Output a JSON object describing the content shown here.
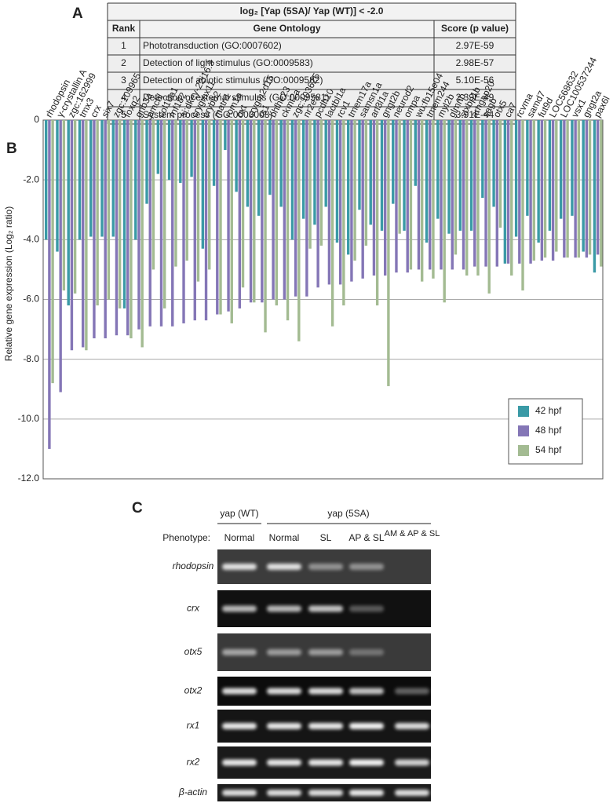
{
  "panel_a": {
    "label": "A",
    "title": "log₂ [Yap (5SA)/ Yap (WT)] < -2.0",
    "columns": [
      "Rank",
      "Gene Ontology",
      "Score (p value)"
    ],
    "rows": [
      [
        "1",
        "Phototransduction (GO:0007602)",
        "2.97E-59"
      ],
      [
        "2",
        "Detection of light stimulus (GO:0009583)",
        "2.98E-57"
      ],
      [
        "3",
        "Detection of abiotic stimulus (GO:0009582)",
        "5.10E-56"
      ],
      [
        "4",
        "Detection of external stimulus (GO:0009581)",
        "2.39E-49"
      ],
      [
        "5",
        "System process (GO:0003008)",
        "3.91E-44"
      ]
    ]
  },
  "chart_data": {
    "type": "bar",
    "panel": "B",
    "y_label": "Relative gene expression (Log₂ ratio)",
    "categories": [
      "rhodopsin",
      "γ-crystallin A",
      "zgc:162999",
      "tmx3",
      "crx",
      "six7",
      "zgc:109965",
      "foxq2",
      "gnb3a",
      "pmchl",
      "col10a1",
      "rnf182",
      "si:dkey-22i16.3",
      "crygmx11",
      "crybb2",
      "matn1",
      "rom1a",
      "oxt",
      "crygm2d15",
      "rs1",
      "bhlhe23",
      "ckmt2a",
      "zgc:103625",
      "nr2e3",
      "pcdh10",
      "lactbl1a",
      "rcv1",
      "tmem17a",
      "samsn1a",
      "arl3l1a",
      "gngt2b",
      "neurod2",
      "ompa",
      "wu:fb15e04",
      "tmem244",
      "myl2b",
      "glmnb",
      "stxbp1b",
      "arhgap20",
      "sagb",
      "otx5",
      "ca7",
      "rcvma",
      "samd7",
      "fut9d",
      "LOC568632",
      "LOC100537244",
      "vsx1",
      "gngt2a",
      "pax6l"
    ],
    "category_colors": [
      "#d62020",
      "#222",
      "#222",
      "#222",
      "#d62020",
      "#222",
      "#222",
      "#222",
      "#222",
      "#222",
      "#222",
      "#222",
      "#222",
      "#222",
      "#222",
      "#222",
      "#222",
      "#222",
      "#222",
      "#222",
      "#222",
      "#222",
      "#222",
      "#d62020",
      "#222",
      "#222",
      "#222",
      "#222",
      "#222",
      "#222",
      "#222",
      "#222",
      "#222",
      "#222",
      "#222",
      "#222",
      "#222",
      "#222",
      "#222",
      "#222",
      "#d62020",
      "#222",
      "#222",
      "#222",
      "#222",
      "#222",
      "#222",
      "#222",
      "#222",
      "#222"
    ],
    "series": [
      {
        "name": "42 hpf",
        "color": "#3a9aa6",
        "values": [
          -4.0,
          -4.4,
          -6.2,
          -4.0,
          -3.9,
          -3.9,
          -3.9,
          -6.3,
          -4.0,
          -2.8,
          -1.8,
          -2.0,
          -2.1,
          -1.9,
          -4.3,
          -2.2,
          -1.0,
          -2.4,
          -2.9,
          -3.2,
          -2.5,
          -2.9,
          -4.0,
          -3.3,
          -3.5,
          -2.9,
          -4.1,
          -4.5,
          -3.0,
          -3.5,
          -3.7,
          -2.8,
          -3.7,
          -2.2,
          -4.1,
          -3.3,
          -3.8,
          -3.7,
          -3.7,
          -2.6,
          -2.9,
          -4.8,
          -3.9,
          -3.2,
          -4.1,
          -3.7,
          -3.3,
          -3.2,
          -4.4,
          -5.1
        ]
      },
      {
        "name": "48 hpf",
        "color": "#8476b6",
        "values": [
          -11.0,
          -9.1,
          -7.7,
          -7.6,
          -7.3,
          -7.3,
          -7.2,
          -7.2,
          -7.0,
          -6.9,
          -6.9,
          -6.9,
          -6.8,
          -6.7,
          -6.7,
          -6.5,
          -6.4,
          -6.3,
          -6.1,
          -6.1,
          -6.0,
          -6.0,
          -5.9,
          -5.9,
          -5.6,
          -5.5,
          -5.5,
          -5.4,
          -5.3,
          -5.2,
          -5.2,
          -5.1,
          -5.1,
          -5.0,
          -5.0,
          -5.0,
          -5.0,
          -5.0,
          -4.9,
          -4.9,
          -4.9,
          -4.8,
          -4.8,
          -4.8,
          -4.7,
          -4.7,
          -4.6,
          -4.6,
          -4.6,
          -4.5
        ]
      },
      {
        "name": "54 hpf",
        "color": "#a3bb92",
        "values": [
          -8.8,
          -5.7,
          -5.8,
          -7.7,
          -6.2,
          -6.0,
          -6.3,
          -7.3,
          -7.6,
          -5.0,
          -6.3,
          -4.9,
          -4.7,
          -5.4,
          -5.0,
          -6.5,
          -6.8,
          -5.6,
          -6.1,
          -7.1,
          -6.2,
          -6.7,
          -7.4,
          -4.3,
          -4.2,
          -6.9,
          -6.2,
          -4.7,
          -4.2,
          -6.2,
          -8.9,
          -3.8,
          -5.0,
          -5.4,
          -5.3,
          -6.1,
          -4.5,
          -5.2,
          -5.2,
          -5.8,
          -3.6,
          -5.2,
          -5.7,
          -4.7,
          -4.6,
          -4.4,
          -4.6,
          -4.6,
          -4.5,
          -4.9
        ]
      }
    ],
    "ylim": [
      -12,
      0
    ],
    "yticks": [
      0,
      {
        "value": -2,
        "label": "-2.0"
      },
      {
        "value": -4,
        "label": "-4.0"
      },
      {
        "value": -6,
        "label": "-6.0"
      },
      {
        "value": -8,
        "label": "-8.0"
      },
      {
        "value": -10,
        "label": "-10.0"
      },
      {
        "value": -12,
        "label": "-12.0"
      }
    ],
    "grid": true,
    "legend": "lower right"
  },
  "panel_c": {
    "label": "C",
    "groups": [
      "yap (WT)",
      "yap (5SA)"
    ],
    "phenotype_label": "Phenotype:",
    "lanes": [
      "Normal",
      "Normal",
      "SL",
      "AP & SL",
      "AM & AP & SL"
    ],
    "rows": [
      "rhodopsin",
      "crx",
      "otx5",
      "otx2",
      "rx1",
      "rx2",
      "β-actin"
    ]
  }
}
